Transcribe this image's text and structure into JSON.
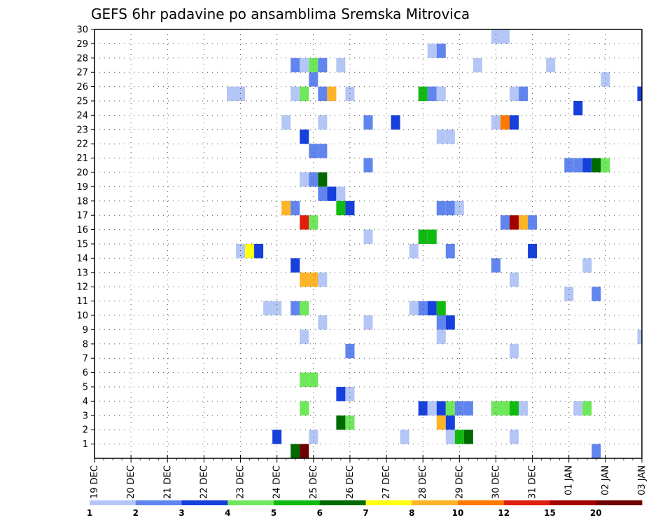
{
  "chart_data": {
    "type": "heatmap",
    "title": "GEFS 6hr padavine po ansamblima Sremska Mitrovica",
    "xlabel": "",
    "ylabel": "",
    "x_ticks": [
      "19 DEC",
      "20 DEC",
      "21 DEC",
      "22 DEC",
      "23 DEC",
      "24 DEC",
      "25 DEC",
      "26 DEC",
      "27 DEC",
      "28 DEC",
      "29 DEC",
      "30 DEC",
      "31 DEC",
      "01 JAN",
      "02 JAN",
      "03 JAN"
    ],
    "y_ticks": [
      "1",
      "2",
      "3",
      "4",
      "5",
      "6",
      "7",
      "8",
      "9",
      "10",
      "11",
      "12",
      "13",
      "14",
      "15",
      "16",
      "17",
      "18",
      "19",
      "20",
      "21",
      "22",
      "23",
      "24",
      "25",
      "26",
      "27",
      "28",
      "29",
      "30"
    ],
    "x_range_steps": [
      0,
      60
    ],
    "y_range": [
      0,
      30
    ],
    "grid": true,
    "colorbar_labels": [
      "1",
      "2",
      "3",
      "4",
      "5",
      "6",
      "7",
      "8",
      "10",
      "12",
      "15",
      "20"
    ],
    "colors": [
      "#b4c6f5",
      "#6085ee",
      "#1640dc",
      "#6ee85a",
      "#10ba10",
      "#006a00",
      "#ffff10",
      "#ffb428",
      "#ff7a00",
      "#e01e10",
      "#a50000",
      "#6e0000"
    ],
    "cells": [
      {
        "m": 30,
        "t": 44,
        "c": 0
      },
      {
        "m": 30,
        "t": 45,
        "c": 0
      },
      {
        "m": 29,
        "t": 37,
        "c": 0
      },
      {
        "m": 29,
        "t": 38,
        "c": 1
      },
      {
        "m": 28,
        "t": 22,
        "c": 1
      },
      {
        "m": 28,
        "t": 23,
        "c": 0
      },
      {
        "m": 28,
        "t": 24,
        "c": 3
      },
      {
        "m": 28,
        "t": 25,
        "c": 1
      },
      {
        "m": 28,
        "t": 27,
        "c": 0
      },
      {
        "m": 28,
        "t": 42,
        "c": 0
      },
      {
        "m": 28,
        "t": 50,
        "c": 0
      },
      {
        "m": 27,
        "t": 24,
        "c": 1
      },
      {
        "m": 27,
        "t": 56,
        "c": 0
      },
      {
        "m": 26,
        "t": 15,
        "c": 0
      },
      {
        "m": 26,
        "t": 16,
        "c": 0
      },
      {
        "m": 26,
        "t": 22,
        "c": 0
      },
      {
        "m": 26,
        "t": 23,
        "c": 3
      },
      {
        "m": 26,
        "t": 25,
        "c": 1
      },
      {
        "m": 26,
        "t": 26,
        "c": 7
      },
      {
        "m": 26,
        "t": 28,
        "c": 0
      },
      {
        "m": 26,
        "t": 36,
        "c": 4
      },
      {
        "m": 26,
        "t": 37,
        "c": 1
      },
      {
        "m": 26,
        "t": 38,
        "c": 0
      },
      {
        "m": 26,
        "t": 46,
        "c": 0
      },
      {
        "m": 26,
        "t": 47,
        "c": 1
      },
      {
        "m": 26,
        "t": 60,
        "c": 2
      },
      {
        "m": 25,
        "t": 53,
        "c": 2
      },
      {
        "m": 24,
        "t": 21,
        "c": 0
      },
      {
        "m": 24,
        "t": 25,
        "c": 0
      },
      {
        "m": 24,
        "t": 30,
        "c": 1
      },
      {
        "m": 24,
        "t": 33,
        "c": 2
      },
      {
        "m": 24,
        "t": 44,
        "c": 0
      },
      {
        "m": 24,
        "t": 45,
        "c": 8
      },
      {
        "m": 24,
        "t": 46,
        "c": 2
      },
      {
        "m": 23,
        "t": 23,
        "c": 2
      },
      {
        "m": 23,
        "t": 38,
        "c": 0
      },
      {
        "m": 23,
        "t": 39,
        "c": 0
      },
      {
        "m": 22,
        "t": 24,
        "c": 1
      },
      {
        "m": 22,
        "t": 25,
        "c": 1
      },
      {
        "m": 21,
        "t": 30,
        "c": 1
      },
      {
        "m": 21,
        "t": 52,
        "c": 1
      },
      {
        "m": 21,
        "t": 53,
        "c": 1
      },
      {
        "m": 21,
        "t": 54,
        "c": 2
      },
      {
        "m": 21,
        "t": 55,
        "c": 5
      },
      {
        "m": 21,
        "t": 56,
        "c": 3
      },
      {
        "m": 20,
        "t": 23,
        "c": 0
      },
      {
        "m": 20,
        "t": 24,
        "c": 1
      },
      {
        "m": 20,
        "t": 25,
        "c": 5
      },
      {
        "m": 19,
        "t": 25,
        "c": 1
      },
      {
        "m": 19,
        "t": 26,
        "c": 2
      },
      {
        "m": 19,
        "t": 27,
        "c": 0
      },
      {
        "m": 18,
        "t": 21,
        "c": 7
      },
      {
        "m": 18,
        "t": 22,
        "c": 1
      },
      {
        "m": 18,
        "t": 27,
        "c": 4
      },
      {
        "m": 18,
        "t": 28,
        "c": 2
      },
      {
        "m": 18,
        "t": 38,
        "c": 1
      },
      {
        "m": 18,
        "t": 39,
        "c": 1
      },
      {
        "m": 18,
        "t": 40,
        "c": 0
      },
      {
        "m": 17,
        "t": 23,
        "c": 9
      },
      {
        "m": 17,
        "t": 24,
        "c": 3
      },
      {
        "m": 17,
        "t": 45,
        "c": 1
      },
      {
        "m": 17,
        "t": 46,
        "c": 10
      },
      {
        "m": 17,
        "t": 47,
        "c": 7
      },
      {
        "m": 17,
        "t": 48,
        "c": 1
      },
      {
        "m": 16,
        "t": 30,
        "c": 0
      },
      {
        "m": 16,
        "t": 36,
        "c": 4
      },
      {
        "m": 16,
        "t": 37,
        "c": 4
      },
      {
        "m": 15,
        "t": 16,
        "c": 0
      },
      {
        "m": 15,
        "t": 17,
        "c": 6
      },
      {
        "m": 15,
        "t": 18,
        "c": 2
      },
      {
        "m": 15,
        "t": 35,
        "c": 0
      },
      {
        "m": 15,
        "t": 39,
        "c": 1
      },
      {
        "m": 15,
        "t": 48,
        "c": 2
      },
      {
        "m": 14,
        "t": 22,
        "c": 2
      },
      {
        "m": 14,
        "t": 44,
        "c": 1
      },
      {
        "m": 14,
        "t": 54,
        "c": 0
      },
      {
        "m": 13,
        "t": 23,
        "c": 7
      },
      {
        "m": 13,
        "t": 24,
        "c": 7
      },
      {
        "m": 13,
        "t": 25,
        "c": 0
      },
      {
        "m": 13,
        "t": 46,
        "c": 0
      },
      {
        "m": 12,
        "t": 52,
        "c": 0
      },
      {
        "m": 12,
        "t": 55,
        "c": 1
      },
      {
        "m": 11,
        "t": 19,
        "c": 0
      },
      {
        "m": 11,
        "t": 20,
        "c": 0
      },
      {
        "m": 11,
        "t": 22,
        "c": 1
      },
      {
        "m": 11,
        "t": 23,
        "c": 3
      },
      {
        "m": 11,
        "t": 35,
        "c": 0
      },
      {
        "m": 11,
        "t": 36,
        "c": 1
      },
      {
        "m": 11,
        "t": 37,
        "c": 2
      },
      {
        "m": 11,
        "t": 38,
        "c": 4
      },
      {
        "m": 10,
        "t": 25,
        "c": 0
      },
      {
        "m": 10,
        "t": 30,
        "c": 0
      },
      {
        "m": 10,
        "t": 38,
        "c": 1
      },
      {
        "m": 10,
        "t": 39,
        "c": 2
      },
      {
        "m": 9,
        "t": 23,
        "c": 0
      },
      {
        "m": 9,
        "t": 38,
        "c": 0
      },
      {
        "m": 9,
        "t": 60,
        "c": 0
      },
      {
        "m": 8,
        "t": 28,
        "c": 1
      },
      {
        "m": 8,
        "t": 46,
        "c": 0
      },
      {
        "m": 6,
        "t": 23,
        "c": 3
      },
      {
        "m": 6,
        "t": 24,
        "c": 3
      },
      {
        "m": 5,
        "t": 27,
        "c": 2
      },
      {
        "m": 5,
        "t": 28,
        "c": 0
      },
      {
        "m": 4,
        "t": 23,
        "c": 3
      },
      {
        "m": 4,
        "t": 36,
        "c": 2
      },
      {
        "m": 4,
        "t": 37,
        "c": 0
      },
      {
        "m": 4,
        "t": 38,
        "c": 2
      },
      {
        "m": 4,
        "t": 39,
        "c": 3
      },
      {
        "m": 4,
        "t": 40,
        "c": 1
      },
      {
        "m": 4,
        "t": 41,
        "c": 1
      },
      {
        "m": 4,
        "t": 44,
        "c": 3
      },
      {
        "m": 4,
        "t": 45,
        "c": 3
      },
      {
        "m": 4,
        "t": 46,
        "c": 4
      },
      {
        "m": 4,
        "t": 47,
        "c": 0
      },
      {
        "m": 4,
        "t": 53,
        "c": 0
      },
      {
        "m": 4,
        "t": 54,
        "c": 3
      },
      {
        "m": 3,
        "t": 27,
        "c": 5
      },
      {
        "m": 3,
        "t": 28,
        "c": 3
      },
      {
        "m": 3,
        "t": 38,
        "c": 7
      },
      {
        "m": 3,
        "t": 39,
        "c": 2
      },
      {
        "m": 2,
        "t": 20,
        "c": 2
      },
      {
        "m": 2,
        "t": 24,
        "c": 0
      },
      {
        "m": 2,
        "t": 34,
        "c": 0
      },
      {
        "m": 2,
        "t": 39,
        "c": 0
      },
      {
        "m": 2,
        "t": 40,
        "c": 4
      },
      {
        "m": 2,
        "t": 41,
        "c": 5
      },
      {
        "m": 2,
        "t": 46,
        "c": 0
      },
      {
        "m": 1,
        "t": 22,
        "c": 5
      },
      {
        "m": 1,
        "t": 23,
        "c": 11
      },
      {
        "m": 1,
        "t": 55,
        "c": 1
      }
    ]
  }
}
